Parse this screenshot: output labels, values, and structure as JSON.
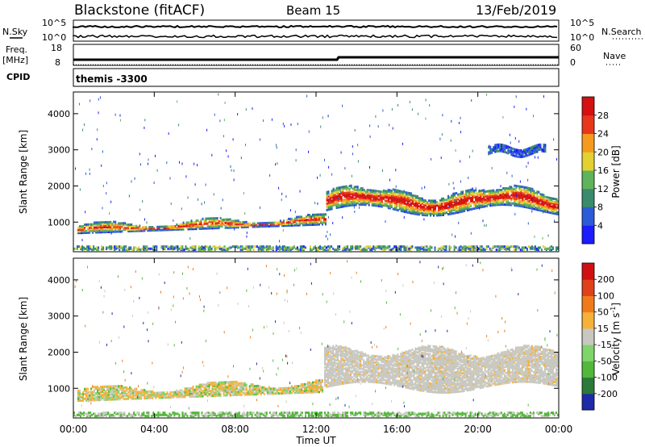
{
  "header": {
    "station": "Blackstone (fitACF)",
    "beam": "Beam 15",
    "date": "13/Feb/2019"
  },
  "top_panels": {
    "nsky_label": "N.Sky",
    "nsearch_label": "N.Search",
    "noise_ticks_left": [
      "10^5",
      "10^0"
    ],
    "noise_ticks_right": [
      "10^5",
      "10^0"
    ],
    "freq_label": "Freq.",
    "freq_unit": "[MHz]",
    "freq_ticks": [
      "18",
      "8"
    ],
    "nave_label": "Nave",
    "nave_ticks": [
      "60",
      "0"
    ],
    "cpid_label": "CPID",
    "cpid_value": "themis -3300"
  },
  "chart_data": [
    {
      "type": "heatmap",
      "parameter": "Power",
      "ylabel": "Slant Range [km]",
      "xlabel": "Time UT",
      "xlim": [
        0,
        24
      ],
      "x_ticks": [
        "00:00",
        "04:00",
        "08:00",
        "12:00",
        "16:00",
        "20:00",
        "00:00"
      ],
      "ylim": [
        180,
        4600
      ],
      "y_ticks": [
        "1000",
        "2000",
        "3000",
        "4000"
      ],
      "colorbar_label": "Power [dB]",
      "colorbar_ticks": [
        "4",
        "8",
        "12",
        "16",
        "20",
        "24",
        "28"
      ],
      "colorbar_colors": [
        "#1c1cff",
        "#2b5bd6",
        "#3a8a6e",
        "#5fb35a",
        "#e2d130",
        "#f59a1e",
        "#e8361a",
        "#d41010"
      ],
      "scatter_features": [
        {
          "time_range": [
            0.2,
            12.5
          ],
          "range_km": [
            700,
            1200
          ],
          "level": "8-24 dB"
        },
        {
          "time_range": [
            12.5,
            24
          ],
          "range_km": [
            1200,
            2000
          ],
          "level": "16-28 dB"
        },
        {
          "time_range": [
            20.5,
            23.3
          ],
          "range_km": [
            2800,
            3200
          ],
          "level": "4-12 dB"
        }
      ]
    },
    {
      "type": "heatmap",
      "parameter": "Velocity",
      "ylabel": "Slant Range [km]",
      "xlabel": "Time UT",
      "xlim": [
        0,
        24
      ],
      "x_ticks": [
        "00:00",
        "04:00",
        "08:00",
        "12:00",
        "16:00",
        "20:00",
        "00:00"
      ],
      "ylim": [
        180,
        4600
      ],
      "y_ticks": [
        "1000",
        "2000",
        "3000",
        "4000"
      ],
      "colorbar_label": "Velocity [m s",
      "colorbar_label_sup": "-1",
      "colorbar_label_end": "]",
      "colorbar_ticks": [
        "200",
        "100",
        "50",
        "15",
        "-15",
        "-50",
        "-100",
        "-200"
      ],
      "colorbar_colors": [
        "#1e2aa8",
        "#2b7a3a",
        "#52b83a",
        "#7fd46a",
        "#c8c8c0",
        "#f5b13a",
        "#f07a1a",
        "#e0401a",
        "#d01010"
      ],
      "scatter_features": [
        {
          "time_range": [
            0.2,
            12.3
          ],
          "range_km": [
            700,
            1300
          ],
          "level": "-50 to 50 m/s"
        },
        {
          "time_range": [
            12.4,
            24
          ],
          "range_km": [
            800,
            2300
          ],
          "level": "-15 to 15 m/s"
        }
      ]
    }
  ],
  "xlabel": "Time UT"
}
